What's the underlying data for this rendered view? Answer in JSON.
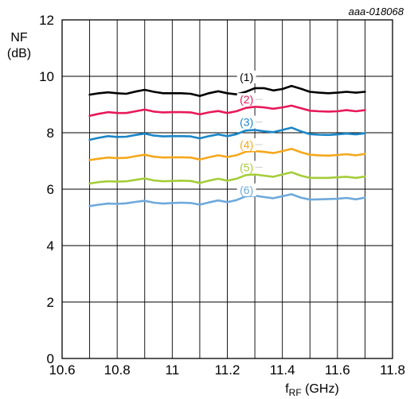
{
  "figure_id": "aaa-018068",
  "chart_data": {
    "type": "line",
    "xlabel_main": "f",
    "xlabel_sub": "RF",
    "xlabel_unit": " (GHz)",
    "ylabel_line1": "NF",
    "ylabel_line2": "(dB)",
    "xlim": [
      10.6,
      11.8
    ],
    "ylim": [
      0,
      12
    ],
    "x_ticks": [
      10.6,
      10.8,
      11,
      11.2,
      11.4,
      11.6,
      11.8
    ],
    "x_tick_labels": [
      "10.6",
      "10.8",
      "11",
      "11.2",
      "11.4",
      "11.6",
      "11.8"
    ],
    "y_ticks": [
      0,
      2,
      4,
      6,
      8,
      10,
      12
    ],
    "y_tick_labels": [
      "0",
      "2",
      "4",
      "6",
      "8",
      "10",
      "12"
    ],
    "grid_x_step": 0.1,
    "grid_y_step": 2,
    "grid": true,
    "x": [
      10.7,
      10.733,
      10.767,
      10.8,
      10.833,
      10.867,
      10.9,
      10.933,
      10.967,
      11.0,
      11.033,
      11.067,
      11.1,
      11.133,
      11.167,
      11.2,
      11.233,
      11.267,
      11.3,
      11.333,
      11.367,
      11.4,
      11.433,
      11.467,
      11.5,
      11.533,
      11.567,
      11.6,
      11.633,
      11.667,
      11.7
    ],
    "series": [
      {
        "name": "(1)",
        "color": "#000000",
        "values": [
          9.35,
          9.4,
          9.43,
          9.4,
          9.38,
          9.46,
          9.52,
          9.45,
          9.4,
          9.4,
          9.4,
          9.38,
          9.3,
          9.4,
          9.47,
          9.4,
          9.36,
          9.45,
          9.58,
          9.58,
          9.5,
          9.55,
          9.66,
          9.56,
          9.45,
          9.42,
          9.4,
          9.42,
          9.45,
          9.42,
          9.45
        ]
      },
      {
        "name": "(2)",
        "color": "#e8195a",
        "values": [
          8.6,
          8.67,
          8.73,
          8.7,
          8.7,
          8.76,
          8.82,
          8.75,
          8.72,
          8.73,
          8.73,
          8.72,
          8.65,
          8.72,
          8.77,
          8.7,
          8.76,
          8.88,
          8.92,
          8.9,
          8.85,
          8.9,
          8.96,
          8.87,
          8.78,
          8.76,
          8.75,
          8.76,
          8.8,
          8.76,
          8.8
        ]
      },
      {
        "name": "(3)",
        "color": "#1a86c8",
        "values": [
          7.75,
          7.82,
          7.88,
          7.85,
          7.86,
          7.92,
          7.97,
          7.9,
          7.87,
          7.88,
          7.88,
          7.87,
          7.8,
          7.88,
          7.94,
          7.88,
          7.95,
          8.08,
          8.1,
          8.05,
          8.02,
          8.1,
          8.18,
          8.05,
          7.95,
          7.93,
          7.92,
          7.94,
          7.97,
          7.94,
          7.98
        ]
      },
      {
        "name": "(4)",
        "color": "#f5a81c",
        "values": [
          7.03,
          7.08,
          7.12,
          7.1,
          7.11,
          7.17,
          7.22,
          7.15,
          7.12,
          7.13,
          7.13,
          7.12,
          7.05,
          7.13,
          7.2,
          7.14,
          7.2,
          7.33,
          7.35,
          7.32,
          7.28,
          7.35,
          7.43,
          7.31,
          7.22,
          7.2,
          7.19,
          7.21,
          7.24,
          7.2,
          7.25
        ]
      },
      {
        "name": "(5)",
        "color": "#a5cd39",
        "values": [
          6.2,
          6.25,
          6.28,
          6.27,
          6.28,
          6.33,
          6.38,
          6.31,
          6.28,
          6.29,
          6.3,
          6.29,
          6.22,
          6.3,
          6.37,
          6.3,
          6.37,
          6.5,
          6.52,
          6.48,
          6.44,
          6.52,
          6.6,
          6.48,
          6.4,
          6.4,
          6.4,
          6.42,
          6.44,
          6.4,
          6.45
        ]
      },
      {
        "name": "(6)",
        "color": "#6ea9db",
        "values": [
          5.4,
          5.45,
          5.49,
          5.48,
          5.5,
          5.55,
          5.59,
          5.52,
          5.49,
          5.51,
          5.52,
          5.51,
          5.45,
          5.53,
          5.6,
          5.54,
          5.61,
          5.75,
          5.77,
          5.72,
          5.68,
          5.75,
          5.82,
          5.7,
          5.63,
          5.64,
          5.65,
          5.66,
          5.69,
          5.64,
          5.7
        ]
      }
    ],
    "series_label_x": 11.27,
    "series_label_y": [
      9.95,
      9.15,
      8.35,
      7.55,
      6.75,
      5.95
    ],
    "label_connector_color": "#cccccc"
  }
}
